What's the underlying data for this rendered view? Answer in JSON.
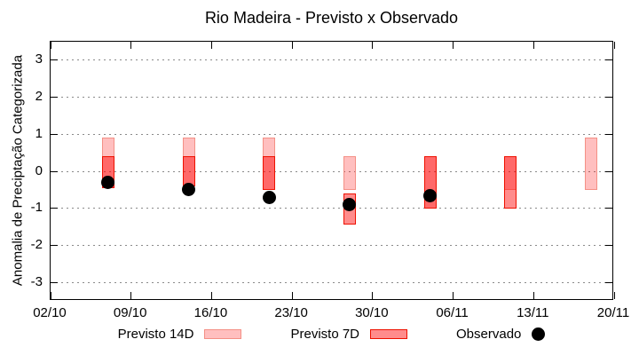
{
  "chart_data": {
    "type": "bar",
    "subtype": "forecast-range-candlestick-with-observed-points",
    "title": "Rio Madeira - Previsto x Observado",
    "ylabel": "Anomalia de Preciptação Categorizada",
    "xlabel": "",
    "ylim": [
      -3.5,
      3.5
    ],
    "yticks": [
      3,
      2,
      1,
      0,
      -1,
      -2,
      -3
    ],
    "xticklabels": [
      "02/10",
      "09/10",
      "16/10",
      "23/10",
      "30/10",
      "06/11",
      "13/11",
      "20/11"
    ],
    "x_dates": [
      "07/10",
      "14/10",
      "21/10",
      "28/10",
      "04/11",
      "11/11",
      "18/11"
    ],
    "x_axis_span_weeks": 7,
    "bar_day_offset": 5,
    "grid": "horizontal-dashed",
    "grid_color": "#8a8a8a",
    "legend_position": "bottom",
    "series": [
      {
        "name": "Previsto 14D",
        "type": "range-bar",
        "fill": "rgba(255,0,0,0.25)",
        "border": "#f49086",
        "ranges": [
          [
            0.9,
            -0.45
          ],
          [
            0.9,
            -0.4
          ],
          [
            0.9,
            -0.5
          ],
          [
            0.4,
            -0.5
          ],
          [
            0.4,
            -1.0
          ],
          [
            0.4,
            -0.5
          ],
          [
            0.9,
            -0.5
          ]
        ]
      },
      {
        "name": "Previsto 7D",
        "type": "range-bar",
        "fill": "rgba(255,0,0,0.45)",
        "border": "#ee1100",
        "ranges": [
          [
            0.4,
            -0.45
          ],
          [
            0.4,
            -0.4
          ],
          [
            0.4,
            -0.5
          ],
          [
            -0.6,
            -1.45
          ],
          [
            0.4,
            -1.0
          ],
          [
            0.4,
            -1.0
          ],
          null
        ]
      },
      {
        "name": "Observado",
        "type": "scatter",
        "color": "#000000",
        "values": [
          -0.3,
          -0.5,
          -0.7,
          -0.9,
          -0.65,
          null,
          null
        ]
      }
    ]
  }
}
